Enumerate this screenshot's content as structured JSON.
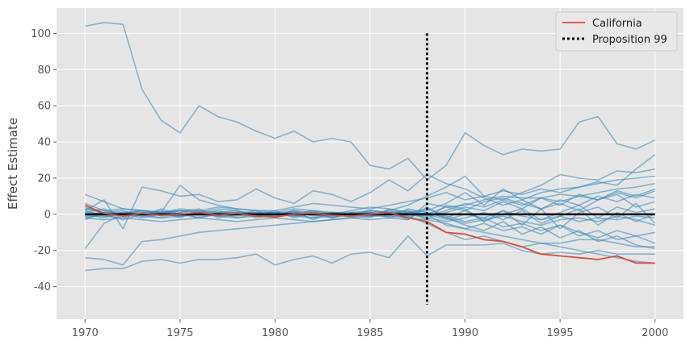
{
  "chart_data": {
    "type": "line",
    "title": "",
    "xlabel": "",
    "ylabel": "Effect Estimate",
    "xlim": [
      1968.5,
      2001.5
    ],
    "ylim": [
      -58,
      114
    ],
    "x_ticks": [
      1970,
      1975,
      1980,
      1985,
      1990,
      1995,
      2000
    ],
    "y_ticks": [
      -40,
      -20,
      0,
      20,
      40,
      60,
      80,
      100
    ],
    "grid": true,
    "legend_position": "top-right",
    "years": [
      1970,
      1971,
      1972,
      1973,
      1974,
      1975,
      1976,
      1977,
      1978,
      1979,
      1980,
      1981,
      1982,
      1983,
      1984,
      1985,
      1986,
      1987,
      1988,
      1989,
      1990,
      1991,
      1992,
      1993,
      1994,
      1995,
      1996,
      1997,
      1998,
      1999,
      2000
    ],
    "treated": {
      "name": "California",
      "color": "#E24A33",
      "values": [
        5,
        0.5,
        -1,
        0.5,
        -0.5,
        0,
        1,
        -0.5,
        0.5,
        -1,
        -1.5,
        0,
        0.5,
        -0.5,
        -1,
        0,
        1,
        -2,
        -4,
        -10,
        -11,
        -14,
        -15,
        -18,
        -22,
        -23,
        -24,
        -25,
        -23,
        -27,
        -27
      ]
    },
    "vertical_line": {
      "name": "Proposition 99",
      "x": 1988,
      "y_range": [
        -50,
        100
      ],
      "color": "#000000"
    },
    "zero_line": {
      "y": 0,
      "color": "#000000"
    },
    "placebo_color": "#348ABD",
    "placebos": [
      [
        104,
        106,
        105,
        69,
        52,
        45,
        60,
        54,
        51,
        46,
        42,
        46,
        40,
        42,
        40,
        27,
        25,
        31,
        19,
        27,
        45,
        38,
        33,
        36,
        35,
        36,
        51,
        54,
        39,
        36,
        41
      ],
      [
        -31,
        -30,
        -30,
        -26,
        -25,
        -27,
        -25,
        -25,
        -24,
        -22,
        -28,
        -25,
        -23,
        -27,
        -22,
        -21,
        -24,
        -12,
        -23,
        -17,
        -17,
        -17,
        -16,
        -20,
        -22,
        -21,
        -22,
        -20,
        -22,
        -22,
        -22
      ],
      [
        -24,
        -25,
        -28,
        -15,
        -14,
        -12,
        -10,
        -9,
        -8,
        -7,
        -6,
        -5,
        -4,
        -3,
        -2,
        -1,
        -1,
        -2,
        -3,
        -5,
        -8,
        -10,
        -12,
        -14,
        -16,
        -18,
        -20,
        -22,
        -24,
        -26,
        -27
      ],
      [
        -19,
        -5,
        0,
        1,
        0,
        -1,
        0,
        1,
        0,
        -1,
        0,
        1,
        0,
        -1,
        0,
        1,
        0,
        -1,
        -5,
        -10,
        -14,
        -12,
        -15,
        -18,
        -16,
        -16,
        -14,
        -14,
        -16,
        -18,
        -18
      ],
      [
        11,
        7,
        3,
        2,
        1,
        2,
        1,
        0,
        1,
        0,
        -1,
        0,
        1,
        0,
        -1,
        0,
        2,
        5,
        10,
        15,
        21,
        10,
        8,
        12,
        16,
        22,
        20,
        19,
        24,
        23,
        25
      ],
      [
        2,
        8,
        -8,
        15,
        13,
        10,
        11,
        7,
        8,
        14,
        9,
        6,
        13,
        11,
        7,
        12,
        19,
        13,
        22,
        17,
        14,
        9,
        5,
        8,
        12,
        14,
        15,
        18,
        16,
        25,
        33
      ],
      [
        4,
        0,
        1,
        2,
        1,
        16,
        8,
        5,
        3,
        2,
        2,
        4,
        6,
        5,
        4,
        3,
        5,
        7,
        9,
        12,
        8,
        10,
        13,
        11,
        14,
        12,
        15,
        17,
        19,
        20,
        21
      ],
      [
        3,
        2,
        3,
        2,
        1,
        2,
        2,
        1,
        1,
        1,
        1,
        1,
        0,
        1,
        1,
        2,
        1,
        2,
        0,
        4,
        5,
        8,
        10,
        9,
        9,
        11,
        10,
        12,
        14,
        15,
        17
      ],
      [
        -2,
        -3,
        -2,
        -3,
        -4,
        -3,
        -2,
        -3,
        -4,
        -3,
        -2,
        -3,
        -4,
        -3,
        -2,
        -3,
        -2,
        -3,
        4,
        -2,
        -5,
        -3,
        -1,
        -4,
        -6,
        -3,
        -2,
        -4,
        -1,
        -3,
        -6
      ],
      [
        1,
        0,
        1,
        -1,
        1,
        -2,
        2,
        -1,
        1,
        0,
        -1,
        2,
        -3,
        1,
        -2,
        1,
        0,
        2,
        -3,
        5,
        3,
        -4,
        2,
        -6,
        3,
        -8,
        1,
        4,
        -2,
        6,
        -5
      ],
      [
        -1,
        1,
        0,
        2,
        -1,
        1,
        -2,
        0,
        1,
        -1,
        2,
        -2,
        1,
        0,
        -1,
        2,
        1,
        -3,
        6,
        4,
        2,
        7,
        9,
        6,
        3,
        8,
        5,
        10,
        7,
        11,
        9
      ],
      [
        0,
        -2,
        1,
        0,
        2,
        -1,
        1,
        -1,
        0,
        2,
        -2,
        1,
        0,
        -2,
        1,
        -1,
        2,
        0,
        -2,
        -4,
        -2,
        1,
        -3,
        2,
        -5,
        -1,
        3,
        -6,
        1,
        -4,
        0
      ],
      [
        2,
        -1,
        -2,
        1,
        0,
        2,
        -1,
        1,
        -2,
        0,
        1,
        -1,
        2,
        -2,
        0,
        1,
        -2,
        1,
        0,
        -6,
        -8,
        -5,
        -9,
        -7,
        -11,
        -6,
        -10,
        -13,
        -9,
        -12,
        -10
      ],
      [
        -3,
        1,
        2,
        -1,
        3,
        0,
        -2,
        1,
        2,
        -2,
        0,
        2,
        -1,
        1,
        0,
        -2,
        3,
        1,
        2,
        6,
        12,
        5,
        14,
        8,
        3,
        6,
        2,
        8,
        11,
        4,
        7
      ],
      [
        1,
        3,
        -1,
        0,
        -2,
        1,
        3,
        -2,
        0,
        1,
        -1,
        2,
        1,
        -2,
        1,
        0,
        -1,
        3,
        1,
        -2,
        2,
        -4,
        0,
        3,
        -3,
        1,
        5,
        -2,
        4,
        1,
        3
      ],
      [
        6,
        2,
        0,
        -2,
        0,
        2,
        1,
        3,
        2,
        0,
        1,
        3,
        2,
        0,
        2,
        4,
        3,
        1,
        0,
        -3,
        0,
        -2,
        2,
        -1,
        -3,
        -1,
        -4,
        -2,
        -3,
        -1,
        -2
      ],
      [
        -2,
        0,
        -3,
        0,
        1,
        -1,
        0,
        2,
        0,
        -1,
        1,
        0,
        -2,
        1,
        0,
        -1,
        1,
        0,
        -1,
        1,
        4,
        2,
        7,
        3,
        9,
        5,
        11,
        8,
        13,
        10,
        14
      ],
      [
        0,
        1,
        -1,
        1,
        0,
        -1,
        1,
        0,
        -1,
        1,
        0,
        -1,
        1,
        0,
        -1,
        1,
        0,
        -1,
        1,
        -2,
        -6,
        -9,
        -4,
        -11,
        -7,
        -13,
        -9,
        -15,
        -12,
        -17,
        -19
      ],
      [
        3,
        1,
        0,
        2,
        1,
        3,
        2,
        4,
        3,
        2,
        1,
        0,
        2,
        1,
        0,
        2,
        1,
        0,
        -1,
        2,
        6,
        4,
        8,
        5,
        9,
        7,
        10,
        8,
        12,
        9,
        13
      ],
      [
        -1,
        -1,
        0,
        -1,
        -2,
        -1,
        0,
        -1,
        -2,
        -1,
        0,
        -1,
        -2,
        -1,
        0,
        -1,
        0,
        1,
        3,
        -1,
        -4,
        -2,
        -7,
        -5,
        -9,
        -6,
        -12,
        -9,
        -14,
        -12,
        -16
      ]
    ]
  }
}
